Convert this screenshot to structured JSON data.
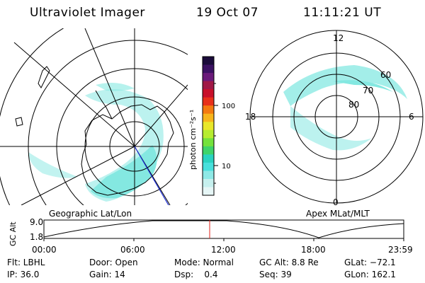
{
  "header": {
    "title": "Ultraviolet Imager",
    "date": "19 Oct 07",
    "time": "11:11:21 UT"
  },
  "colorbar": {
    "unit_label": "photon cm⁻²s⁻¹",
    "tick_labels": [
      "100",
      "10"
    ],
    "colors": [
      "#1a0b3a",
      "#3b1162",
      "#6a1a7a",
      "#a01846",
      "#c8102a",
      "#e8301a",
      "#f47a10",
      "#f7b51c",
      "#e9e72a",
      "#b6ec30",
      "#74e23c",
      "#3fd46a",
      "#2ad3c0",
      "#48e0dc",
      "#8ee9e6",
      "#c6f0ee",
      "#e6f6f6"
    ]
  },
  "left_map": {
    "caption": "Geographic Lat/Lon"
  },
  "right_map": {
    "caption": "Apex MLat/MLT",
    "mlt_labels": {
      "top": "12",
      "left": "18",
      "right": "6",
      "bottom": "0"
    },
    "lat_labels": [
      "60",
      "70",
      "80"
    ]
  },
  "altitude_plot": {
    "ylabel": "GC Alt",
    "yticks": [
      "9.0",
      "1.8"
    ],
    "xticks": [
      "00:00",
      "06:00",
      "12:00",
      "18:00",
      "23:59"
    ],
    "current_marker_color": "#e0201a"
  },
  "status": {
    "row1": [
      {
        "label": "Flt: LBHL"
      },
      {
        "label": "Door: Open"
      },
      {
        "label": "Mode: Normal"
      },
      {
        "label": "GC Alt: 8.8 Re"
      },
      {
        "label": "GLat: −72.1"
      }
    ],
    "row2": [
      {
        "label": "IP: 36.0"
      },
      {
        "label": "Gain: 14"
      },
      {
        "label": "Dsp:    0.4"
      },
      {
        "label": "Seq: 39"
      },
      {
        "label": "GLon: 162.1"
      }
    ]
  }
}
